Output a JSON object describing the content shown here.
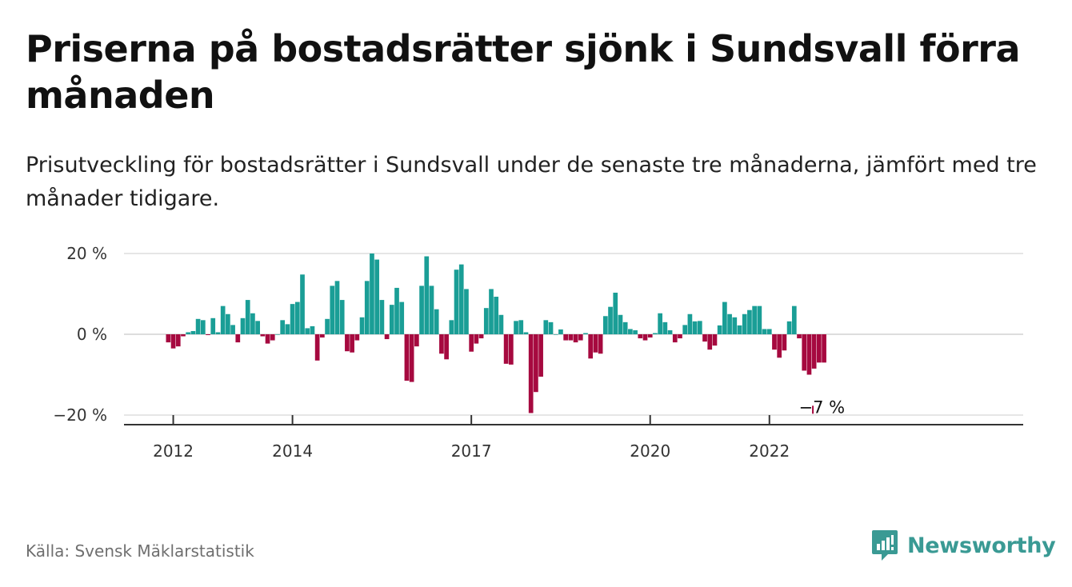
{
  "title": "Priserna på bostadsrätter sjönk i Sundsvall förra månaden",
  "subtitle": "Prisutveckling för bostadsrätter i Sundsvall under de senaste tre månaderna, jämfört med tre månader tidigare.",
  "source": "Källa: Svensk Mäklarstatistik",
  "brand": "Newsworthy",
  "colors": {
    "positive": "#1a9e96",
    "negative": "#a6093f",
    "brand": "#3a9a94",
    "grid": "#dddddd",
    "axis": "#333333"
  },
  "chart_data": {
    "type": "bar",
    "unit": "%",
    "ylim": [
      -22,
      21
    ],
    "yticks": [
      {
        "value": 20,
        "label": "20 %"
      },
      {
        "value": 0,
        "label": "0 %"
      },
      {
        "value": -20,
        "label": "−20 %"
      }
    ],
    "xticks": [
      {
        "value": 2012,
        "label": "2012"
      },
      {
        "value": 2014,
        "label": "2014"
      },
      {
        "value": 2017,
        "label": "2017"
      },
      {
        "value": 2020,
        "label": "2020"
      },
      {
        "value": 2022,
        "label": "2022"
      }
    ],
    "grid": true,
    "start": "2011-12",
    "frequency": "monthly",
    "annotation": {
      "label": "−7 %"
    },
    "values": [
      -2,
      -3.5,
      -3,
      -0.5,
      0.5,
      0.8,
      3.8,
      3.5,
      -0.2,
      4,
      0.5,
      7,
      5,
      2.3,
      -2,
      4,
      8.5,
      5.2,
      3.3,
      -0.5,
      -2.3,
      -1.5,
      0,
      3.5,
      2.5,
      7.5,
      8,
      14.8,
      1.5,
      2,
      -6.5,
      -0.8,
      3.8,
      12,
      13.2,
      8.5,
      -4.2,
      -4.5,
      -1.5,
      4.2,
      13.2,
      20,
      18.5,
      8.5,
      -1.2,
      7.3,
      11.5,
      8,
      -11.5,
      -11.8,
      -3,
      12,
      19.3,
      12,
      6.2,
      -4.8,
      -6.2,
      3.5,
      16,
      17.3,
      11.2,
      -4.3,
      -2.3,
      -1,
      6.5,
      11.2,
      9.3,
      4.8,
      -7.3,
      -7.5,
      3.3,
      3.5,
      0.5,
      -19.5,
      -14.3,
      -10.5,
      3.5,
      3,
      0,
      1.2,
      -1.5,
      -1.5,
      -2,
      -1.5,
      0.3,
      -6,
      -4.5,
      -4.8,
      4.5,
      6.8,
      10.3,
      4.8,
      3,
      1.3,
      1,
      -1,
      -1.5,
      -0.8,
      0.3,
      5.2,
      3,
      1,
      -2,
      -1,
      2.3,
      5,
      3.2,
      3.3,
      -1.8,
      -3.8,
      -2.8,
      2.2,
      8,
      5,
      4.2,
      2.2,
      5,
      6,
      7,
      7,
      1.3,
      1.3,
      -3.8,
      -5.8,
      -4,
      3.2,
      7,
      -1,
      -9,
      -10,
      -8.5,
      -7,
      -7
    ]
  }
}
